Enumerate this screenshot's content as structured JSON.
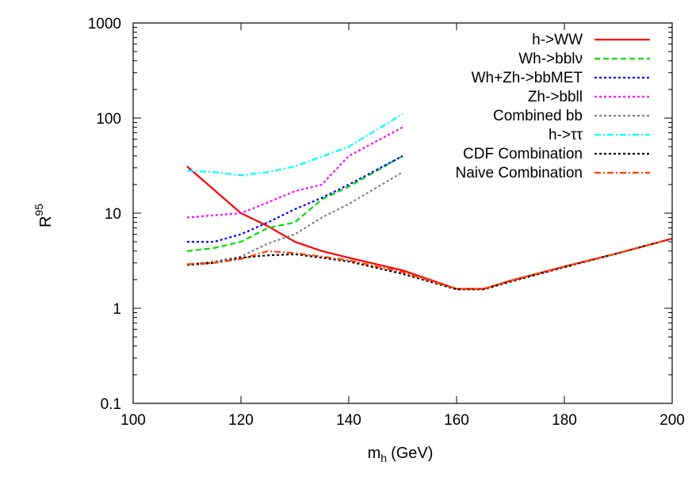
{
  "chart_data": {
    "type": "line",
    "title": "",
    "xlabel": "m",
    "xlabel_sub": "h",
    "xlabel_unit": "(GeV)",
    "ylabel": "R",
    "ylabel_sup": "95",
    "xlim": [
      100,
      200
    ],
    "ylim": [
      0.1,
      1000
    ],
    "yscale": "log",
    "grid": false,
    "legend_position": "top-right",
    "x_ticks": [
      100,
      120,
      140,
      160,
      180,
      200
    ],
    "x_tick_labels": [
      "100",
      "120",
      "140",
      "160",
      "180",
      "200"
    ],
    "y_ticks": [
      0.1,
      1,
      10,
      100,
      1000
    ],
    "y_tick_labels": [
      "0.1",
      "1",
      "10",
      "100",
      "1000"
    ],
    "series": [
      {
        "name": "h->WW",
        "color": "#ff0000",
        "dash": "solid",
        "x": [
          110,
          120,
          125,
          130,
          135,
          140,
          150,
          160,
          165,
          170,
          180,
          190,
          200
        ],
        "y": [
          31,
          10,
          7.3,
          5.0,
          4.0,
          3.4,
          2.5,
          1.6,
          1.6,
          1.95,
          2.75,
          3.8,
          5.4
        ]
      },
      {
        "name": "Wh->bblν",
        "color": "#00dd00",
        "dash": "dashed",
        "x": [
          110,
          115,
          120,
          125,
          130,
          135,
          140,
          150
        ],
        "y": [
          4.0,
          4.3,
          5.0,
          7.0,
          8.0,
          14,
          19,
          40
        ]
      },
      {
        "name": "Wh+Zh->bbMET",
        "color": "#0000ff",
        "dash": "dotted",
        "x": [
          110,
          115,
          120,
          125,
          130,
          135,
          140,
          150
        ],
        "y": [
          5.0,
          5.0,
          6.0,
          8.0,
          11,
          14.5,
          20,
          40
        ]
      },
      {
        "name": "Zh->bbll",
        "color": "#ff00ff",
        "dash": "dotted",
        "x": [
          110,
          115,
          120,
          125,
          130,
          135,
          140,
          150
        ],
        "y": [
          9.0,
          9.5,
          10.0,
          13,
          17,
          20,
          40,
          80
        ]
      },
      {
        "name": "Combined bb",
        "color": "#808080",
        "dash": "dotted",
        "x": [
          110,
          115,
          120,
          125,
          130,
          135,
          140,
          150
        ],
        "y": [
          2.9,
          3.1,
          3.5,
          4.8,
          6.0,
          9.0,
          12.5,
          27
        ]
      },
      {
        "name": "h->ττ",
        "color": "#00ffff",
        "dash": "dash-dot",
        "x": [
          110,
          115,
          120,
          125,
          130,
          140,
          150
        ],
        "y": [
          28,
          27,
          25,
          27,
          31,
          50,
          110
        ]
      },
      {
        "name": "CDF Combination",
        "color": "#000000",
        "dash": "dotted",
        "x": [
          110,
          115,
          120,
          125,
          130,
          135,
          140,
          150,
          160,
          165,
          170,
          180,
          190,
          200
        ],
        "y": [
          2.85,
          3.0,
          3.4,
          3.6,
          3.7,
          3.4,
          3.1,
          2.3,
          1.58,
          1.58,
          1.9,
          2.7,
          3.8,
          5.4
        ]
      },
      {
        "name": "Naive Combination",
        "color": "#ff4000",
        "dash": "dash-dot",
        "x": [
          110,
          115,
          120,
          125,
          130,
          135,
          140,
          150,
          160,
          165,
          170,
          180,
          190,
          200
        ],
        "y": [
          2.9,
          3.0,
          3.3,
          4.0,
          3.8,
          3.5,
          3.2,
          2.4,
          1.6,
          1.6,
          1.95,
          2.75,
          3.8,
          5.4
        ]
      }
    ]
  }
}
